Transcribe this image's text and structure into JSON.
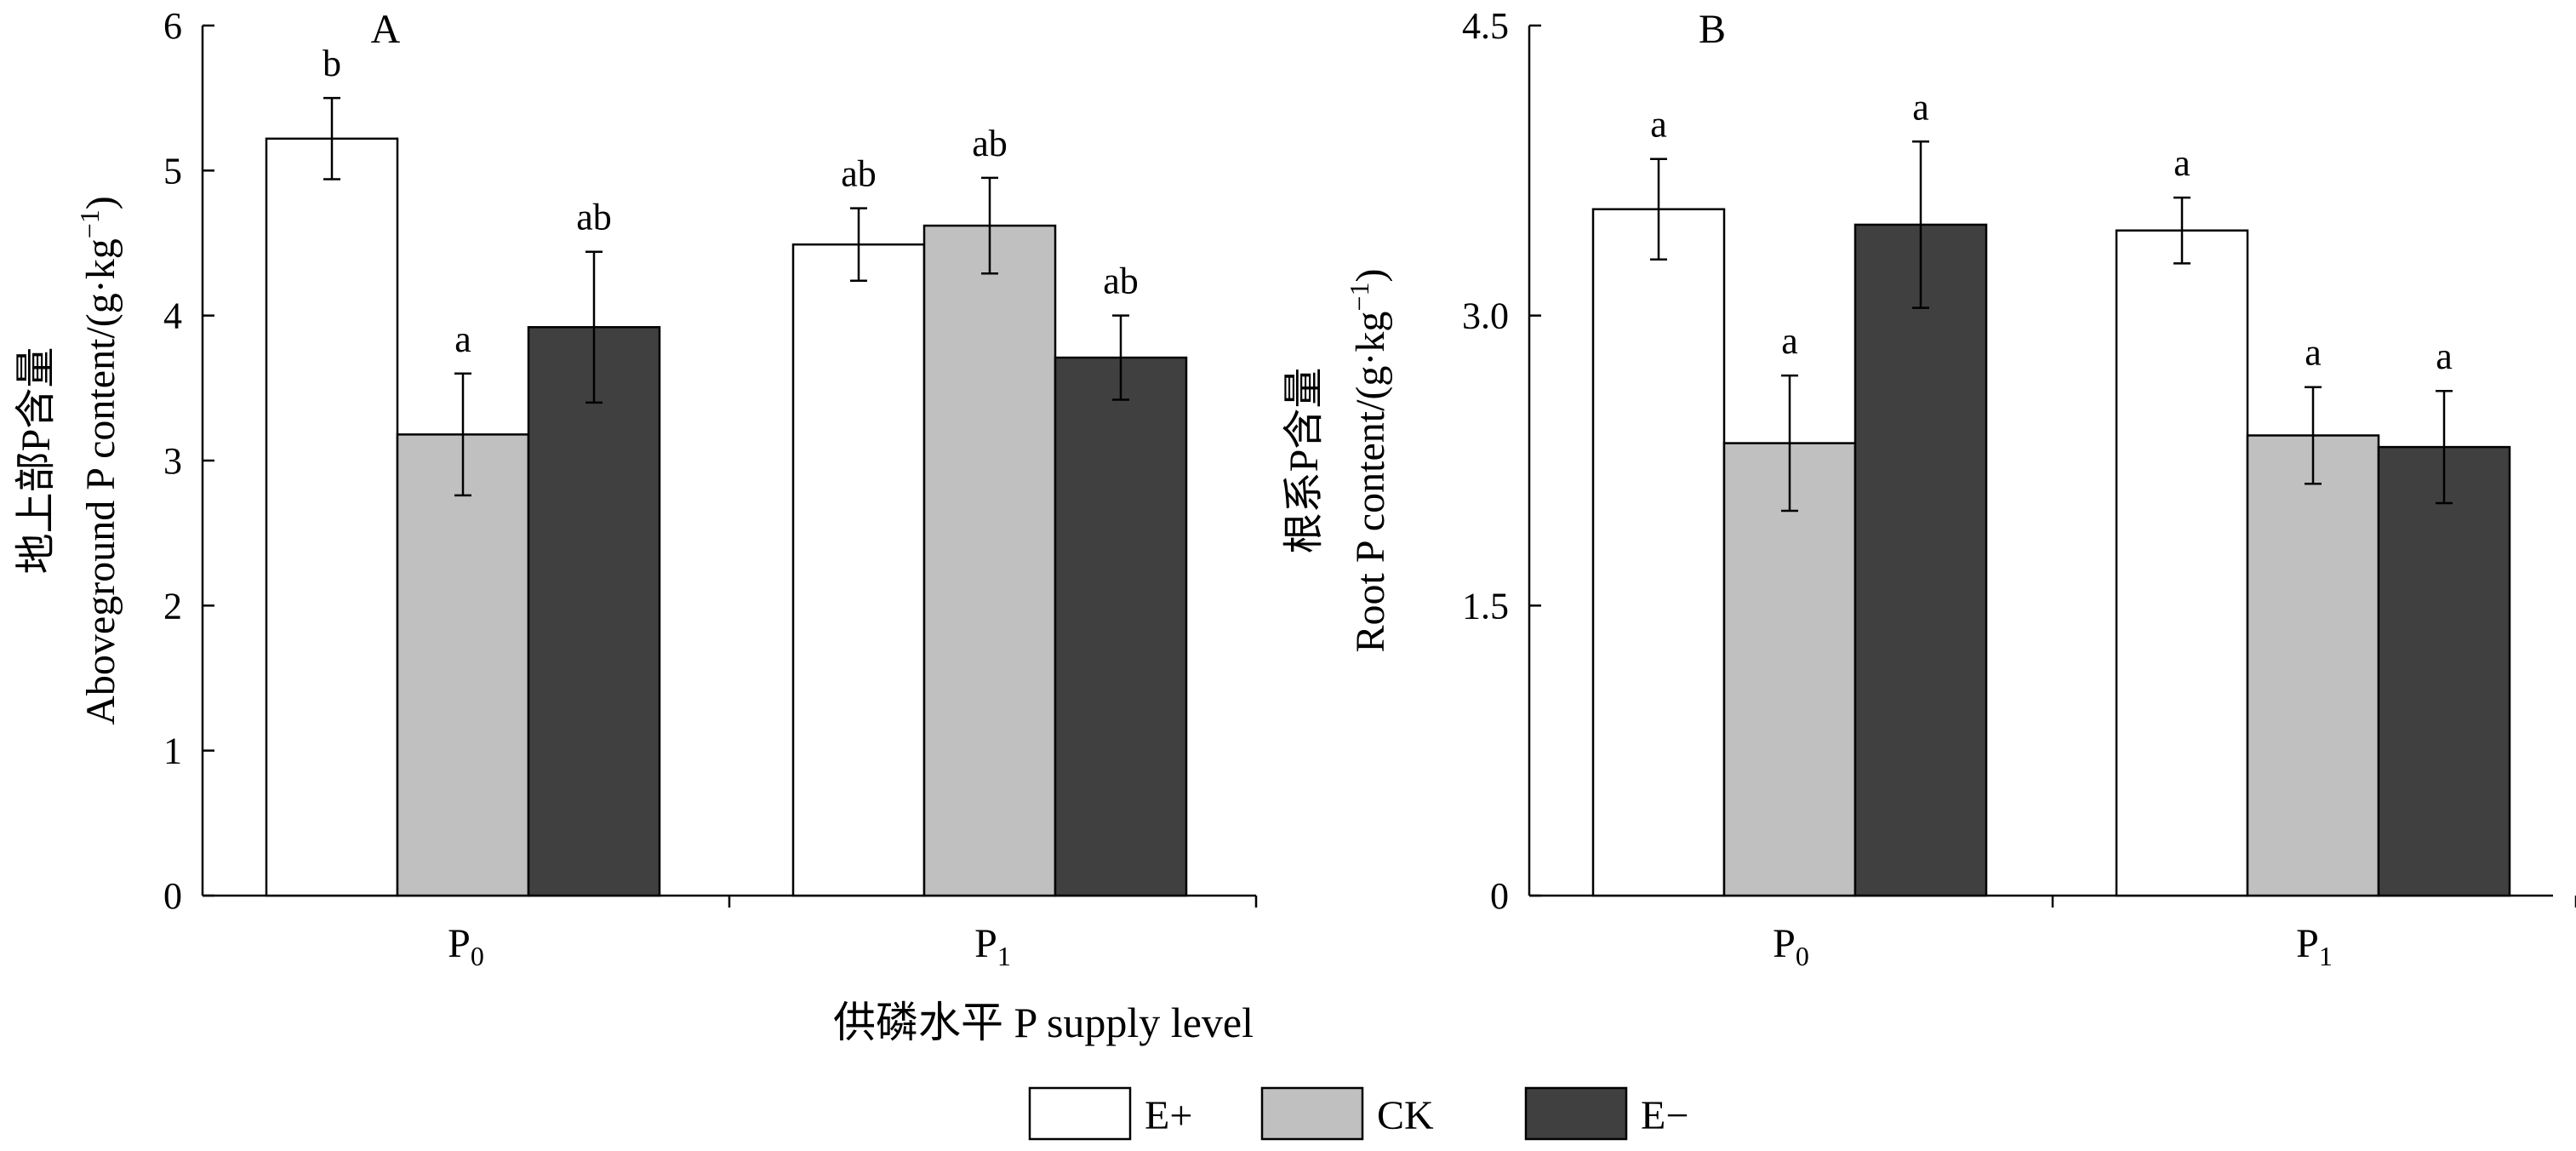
{
  "x_axis_title": "供磷水平  P supply level",
  "legend": [
    {
      "label": "E+",
      "color": "#ffffff"
    },
    {
      "label": "CK",
      "color": "#c0c0c0"
    },
    {
      "label": "E−",
      "color": "#404040"
    }
  ],
  "chart_data": [
    {
      "type": "bar",
      "panel_label": "A",
      "ylabel_cn": "地上部P含量",
      "ylabel_en": "Aboveground P content/(g·kg",
      "ylabel_unit_sup": "−1",
      "ylabel_close": ")",
      "ylim": [
        0,
        6
      ],
      "yticks": [
        "0",
        "1",
        "2",
        "3",
        "4",
        "5",
        "6"
      ],
      "categories": [
        {
          "main": "P",
          "sub": "0"
        },
        {
          "main": "P",
          "sub": "1"
        }
      ],
      "series": [
        {
          "name": "E+",
          "color": "#ffffff",
          "values": [
            5.22,
            4.49
          ],
          "errors": [
            0.28,
            0.25
          ],
          "letters": [
            "b",
            "ab"
          ]
        },
        {
          "name": "CK",
          "color": "#c0c0c0",
          "values": [
            3.18,
            4.62
          ],
          "errors": [
            0.42,
            0.33
          ],
          "letters": [
            "a",
            "ab"
          ]
        },
        {
          "name": "E−",
          "color": "#404040",
          "values": [
            3.92,
            3.71
          ],
          "errors": [
            0.52,
            0.29
          ],
          "letters": [
            "ab",
            "ab"
          ]
        }
      ]
    },
    {
      "type": "bar",
      "panel_label": "B",
      "ylabel_cn": "根系P含量",
      "ylabel_en": "Root P content/(g·kg",
      "ylabel_unit_sup": "−1",
      "ylabel_close": ")",
      "ylim": [
        0,
        4.5
      ],
      "yticks": [
        "0",
        "1.5",
        "3.0",
        "4.5"
      ],
      "categories": [
        {
          "main": "P",
          "sub": "0"
        },
        {
          "main": "P",
          "sub": "1"
        }
      ],
      "series": [
        {
          "name": "E+",
          "color": "#ffffff",
          "values": [
            3.55,
            3.44
          ],
          "errors": [
            0.26,
            0.17
          ],
          "letters": [
            "a",
            "a"
          ]
        },
        {
          "name": "CK",
          "color": "#c0c0c0",
          "values": [
            2.34,
            2.38
          ],
          "errors": [
            0.35,
            0.25
          ],
          "letters": [
            "a",
            "a"
          ]
        },
        {
          "name": "E−",
          "color": "#404040",
          "values": [
            3.47,
            2.32
          ],
          "errors": [
            0.43,
            0.29
          ],
          "letters": [
            "a",
            "a"
          ]
        }
      ]
    }
  ]
}
